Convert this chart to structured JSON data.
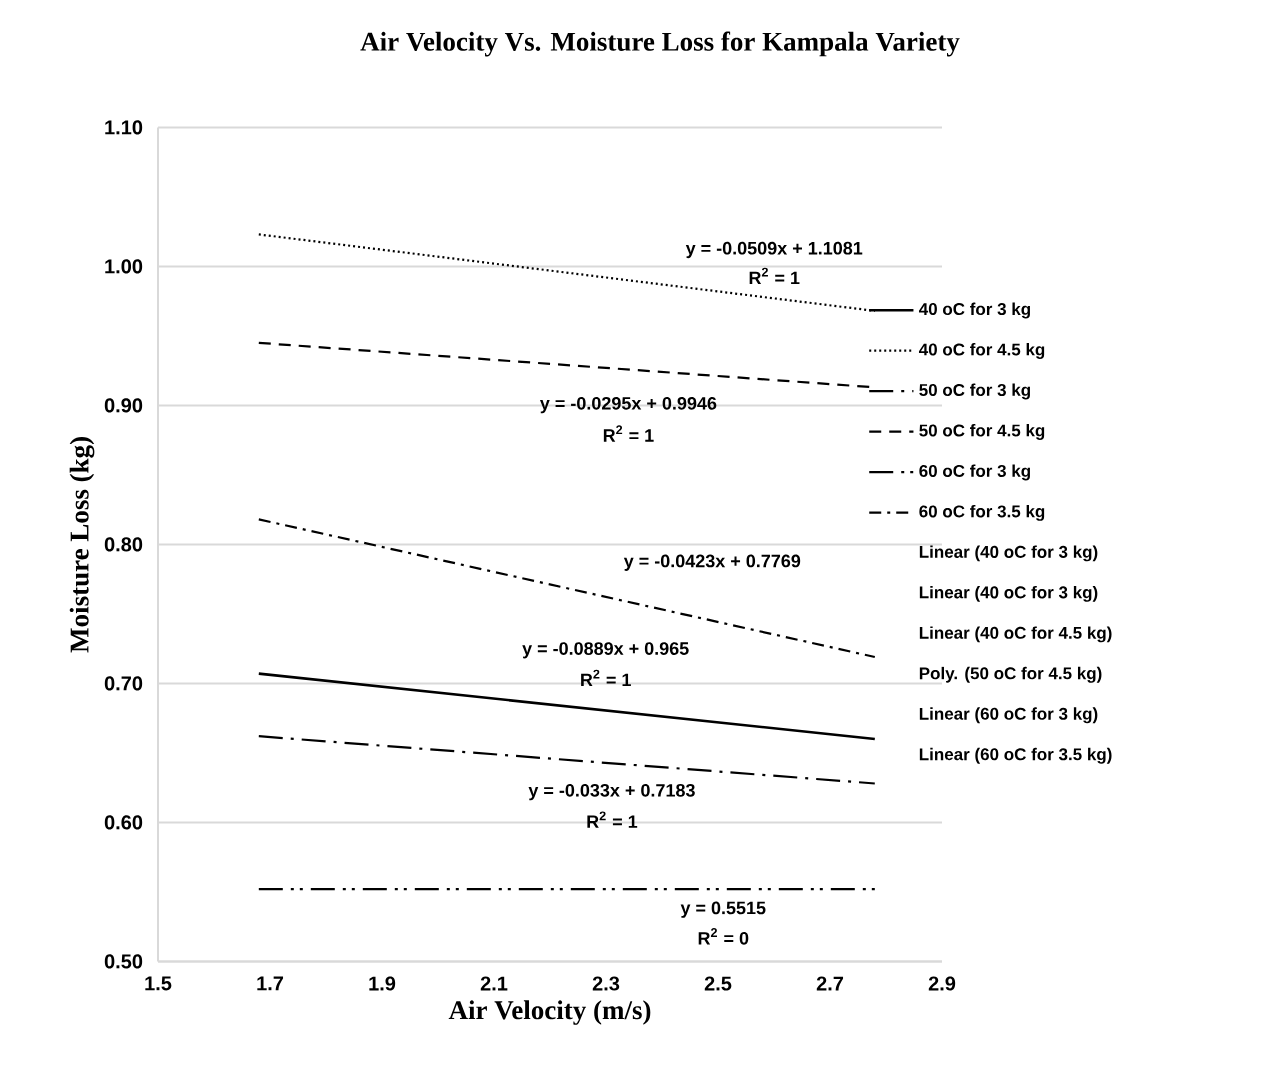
{
  "chart_data": {
    "type": "line",
    "title": "Air Velocity Vs. Moisture Loss for Kampala Variety",
    "xlabel": "Air Velocity (m/s)",
    "ylabel": "Moisture Loss (kg)",
    "xlim": [
      1.5,
      2.9
    ],
    "xticks": [
      1.5,
      1.7,
      1.9,
      2.1,
      2.3,
      2.5,
      2.7,
      2.9
    ],
    "ylim": [
      0.5,
      1.1
    ],
    "yticks": [
      {
        "value": 0.5,
        "label": "0.50"
      },
      {
        "value": 0.6,
        "label": "0.60"
      },
      {
        "value": 0.7,
        "label": "0.70"
      },
      {
        "value": 0.8,
        "label": "0.80"
      },
      {
        "value": 0.9,
        "label": "0.90"
      },
      {
        "value": 1.0,
        "label": "1.00"
      },
      {
        "value": 1.1,
        "label": "1.10"
      }
    ],
    "x": [
      1.68,
      2.78
    ],
    "grid": "y",
    "legend": "right",
    "series": [
      {
        "name": "40 oC for 3 kg",
        "color": "#000000",
        "line_style": "solid",
        "values": [
          0.707,
          0.66
        ]
      },
      {
        "name": "40 oC for 4.5 kg",
        "color": "#000000",
        "line_style": "dotted",
        "values": [
          1.023,
          0.968
        ]
      },
      {
        "name": "50 oC for 3 kg",
        "color": "#000000",
        "line_style": "longdashdot",
        "values": [
          0.662,
          0.628
        ]
      },
      {
        "name": "50 oC for 4.5 kg",
        "color": "#000000",
        "line_style": "dashed",
        "values": [
          0.945,
          0.913
        ]
      },
      {
        "name": "60 oC for 3 kg",
        "color": "#000000",
        "line_style": "dashdotdot",
        "values": [
          0.552,
          0.552
        ]
      },
      {
        "name": "60 oC for 3.5 kg",
        "color": "#000000",
        "line_style": "dashdot",
        "values": [
          0.818,
          0.719
        ]
      }
    ],
    "annotations": [
      "Linear (40 oC for 3 kg)",
      "Linear (40 oC for 3 kg)",
      "Linear (40 oC for 4.5 kg)",
      "Poly. (50 oC for 4.5 kg)",
      "Linear (60 oC for 3 kg)",
      "Linear (60 oC for 3.5 kg)",
      "y = -0.0509x + 1.1081",
      "R$^{2}$ = 1",
      "y = -0.0295x + 0.9946",
      "R$^{2}$ = 1",
      "y = -0.0423x + 0.7769",
      "y = -0.0889x + 0.965",
      "R$^{2}$ = 1",
      "y = -0.033x + 0.7183",
      "R$^{2}$ = 1",
      "y = 0.5515",
      "R$^{2}$ = 0"
    ]
  }
}
